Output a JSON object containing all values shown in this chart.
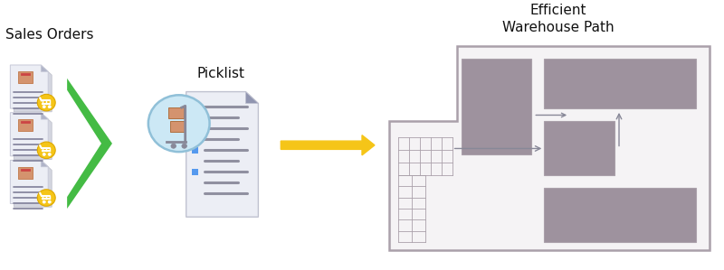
{
  "bg_color": "#ffffff",
  "title_sales": "Sales Orders",
  "title_picklist": "Picklist",
  "title_warehouse": "Efficient\nWarehouse Path",
  "title_fontsize": 11,
  "doc_color": "#e8eaf0",
  "doc_shadow_color": "#d0d2dc",
  "doc_fold_color": "#b8bace",
  "line_color": "#9090a0",
  "cart_circle_color": "#f5c518",
  "green_arrow_color": "#44bb44",
  "orange_arrow_color": "#f5c518",
  "warehouse_border": "#aaa0aa",
  "warehouse_fill": "#9e929e",
  "warehouse_bg": "#ffffff",
  "blue_circle_color": "#cde8f5",
  "picklist_circle_stroke": "#a0c8dc",
  "box_color": "#d4936e",
  "box_stripe_color": "#cc5555",
  "path_line_color": "#888898"
}
